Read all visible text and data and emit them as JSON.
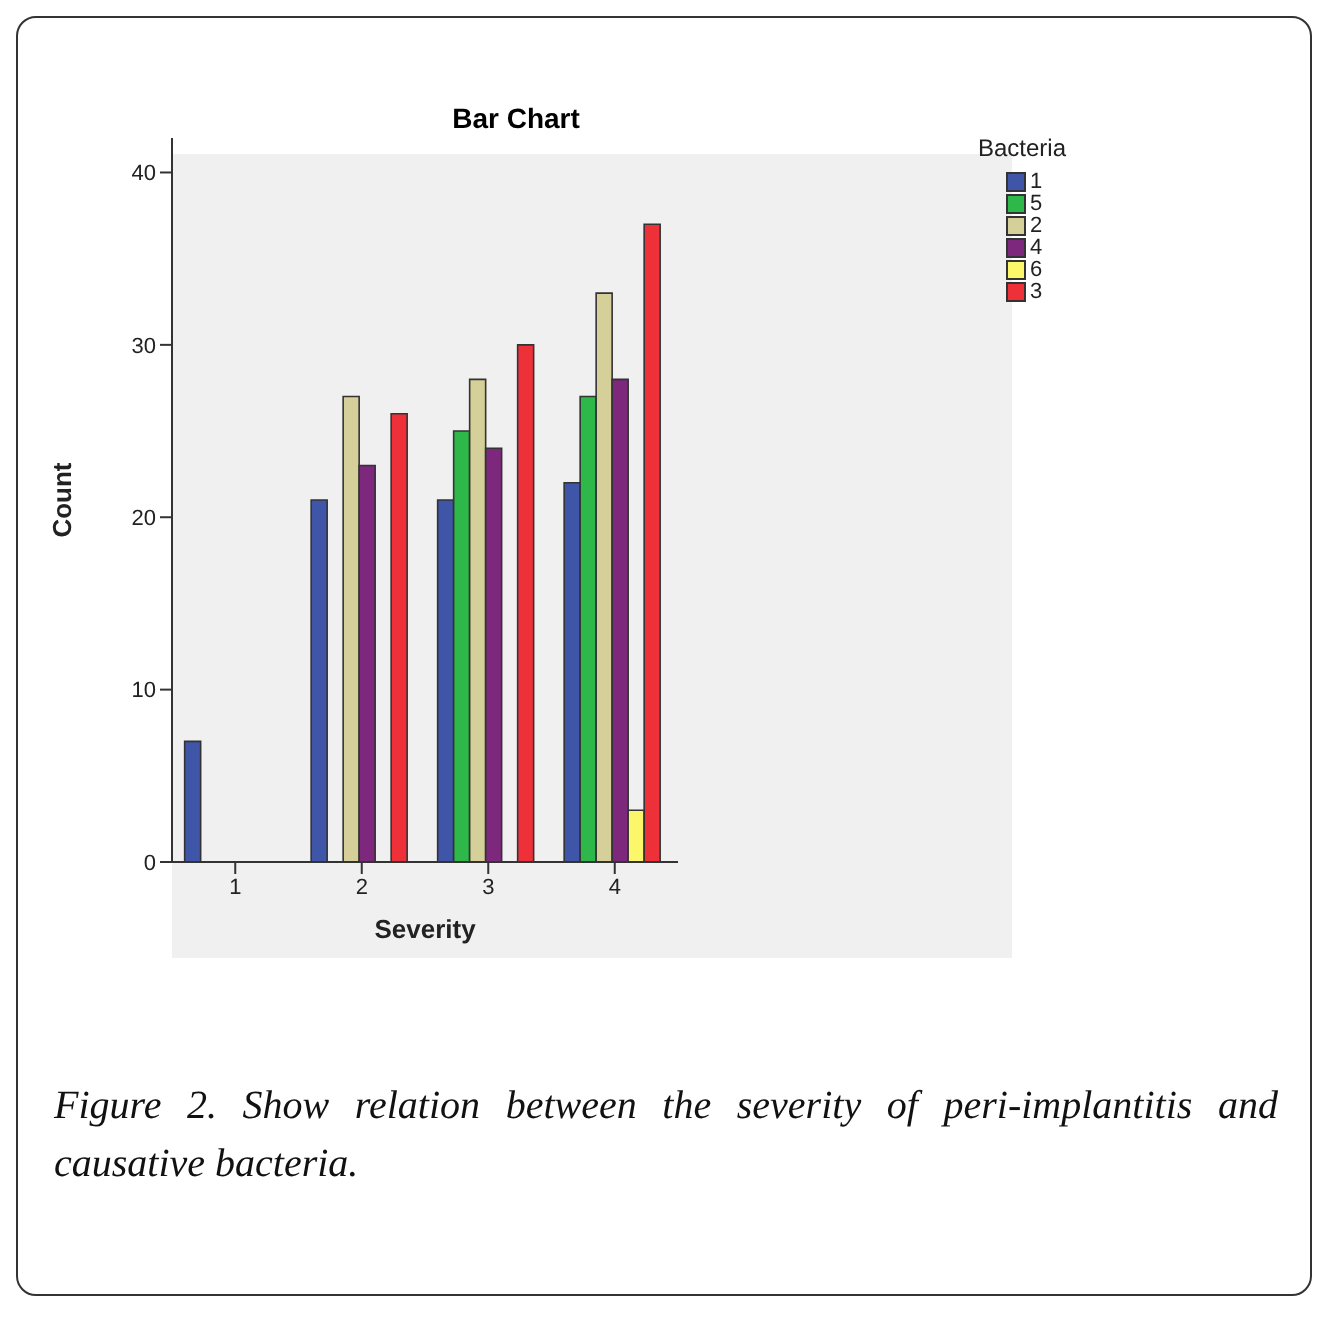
{
  "chart_data": {
    "type": "bar",
    "title": "Bar Chart",
    "xlabel": "Severity",
    "ylabel": "Count",
    "legend_title": "Bacteria",
    "categories": [
      "1",
      "2",
      "3",
      "4"
    ],
    "series": [
      {
        "name": "1",
        "color": "#3f55a8",
        "values": [
          7,
          21,
          21,
          22
        ]
      },
      {
        "name": "5",
        "color": "#2fb84a",
        "values": [
          null,
          null,
          25,
          27
        ]
      },
      {
        "name": "2",
        "color": "#d5cf99",
        "values": [
          null,
          27,
          28,
          33
        ]
      },
      {
        "name": "4",
        "color": "#7d287d",
        "values": [
          null,
          23,
          24,
          28
        ]
      },
      {
        "name": "6",
        "color": "#fbf66a",
        "values": [
          null,
          null,
          null,
          3
        ]
      },
      {
        "name": "3",
        "color": "#ee3139",
        "values": [
          null,
          26,
          30,
          37
        ]
      }
    ],
    "ylim": [
      0,
      42
    ],
    "yticks": [
      0,
      10,
      20,
      30,
      40
    ],
    "grid": false,
    "legend": "top right",
    "annotations": [
      "Figure 2. Show relation between the severity of peri-implantitis and causative bacteria."
    ]
  }
}
